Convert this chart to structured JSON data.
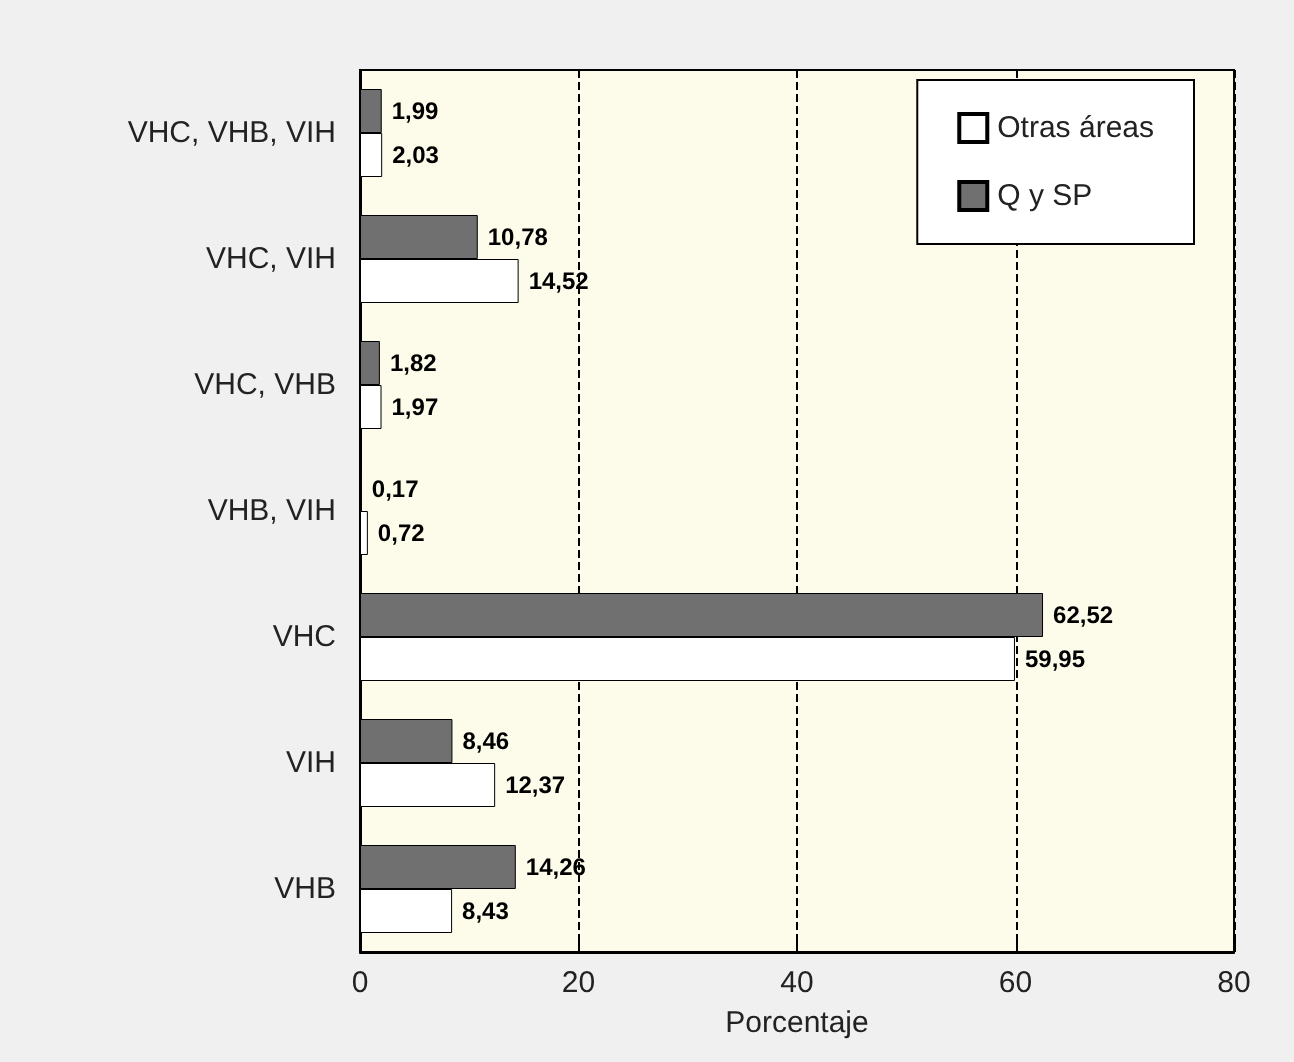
{
  "chart_data": {
    "type": "bar",
    "orientation": "horizontal",
    "xlabel": "Porcentaje",
    "categories": [
      "VHC, VHB, VIH",
      "VHC, VIH",
      "VHC, VHB",
      "VHB, VIH",
      "VHC",
      "VIH",
      "VHB"
    ],
    "series": [
      {
        "name": "Q y SP",
        "color": "#707070",
        "values": [
          1.99,
          10.78,
          1.82,
          0.17,
          62.52,
          8.46,
          14.26
        ],
        "value_labels": [
          "1,99",
          "10,78",
          "1,82",
          "0,17",
          "62,52",
          "8,46",
          "14,26"
        ]
      },
      {
        "name": "Otras áreas",
        "color": "#ffffff",
        "values": [
          2.03,
          14.52,
          1.97,
          0.72,
          59.95,
          12.37,
          8.43
        ],
        "value_labels": [
          "2,03",
          "14,52",
          "1,97",
          "0,72",
          "59,95",
          "12,37",
          "8,43"
        ]
      }
    ],
    "xlim": [
      0,
      80
    ],
    "xticks": [
      0,
      20,
      40,
      60,
      80
    ],
    "grid": "x",
    "legend": "top right"
  }
}
